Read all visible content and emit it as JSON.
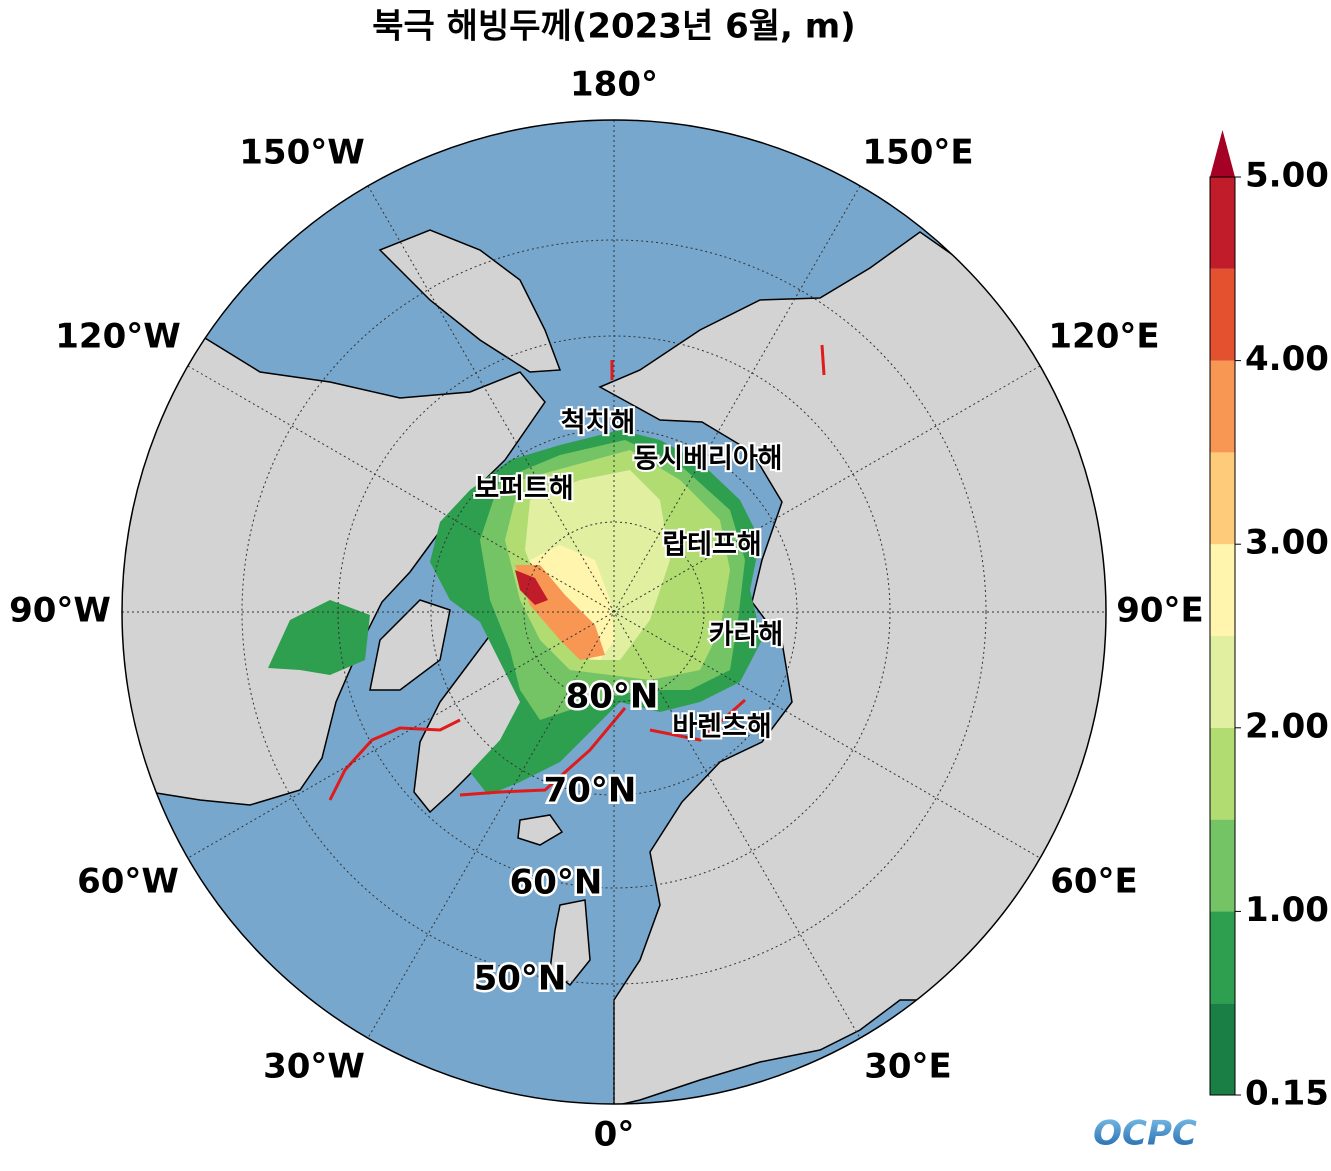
{
  "title": "북극 해빙두께(2023년 6월, m)",
  "longitude_labels": [
    "180°",
    "150°E",
    "120°E",
    "90°E",
    "60°E",
    "30°E",
    "0°",
    "30°W",
    "60°W",
    "90°W",
    "120°W",
    "150°W"
  ],
  "latitude_labels": [
    "80°N",
    "70°N",
    "60°N",
    "50°N"
  ],
  "sea_labels": [
    "척치해",
    "동시베리아해",
    "보퍼트해",
    "랍테프해",
    "카라해",
    "바렌츠해"
  ],
  "colorbar": {
    "levels": [
      0.15,
      0.5,
      1,
      1.5,
      2,
      2.5,
      3,
      3.5,
      4,
      4.5,
      5
    ],
    "colors": [
      "#1a7f44",
      "#2e9e4f",
      "#74c465",
      "#b0dc72",
      "#e0f0a0",
      "#fff5ad",
      "#fdcb7a",
      "#f89753",
      "#e4512f",
      "#c11c2a"
    ],
    "extend_color": "#a50026",
    "ticks": [
      0.15,
      {
        "value": 1,
        "label": "1.00"
      },
      {
        "value": 2,
        "label": "2.00"
      },
      {
        "value": 3,
        "label": "3.00"
      },
      {
        "value": 4,
        "label": "4.00"
      },
      {
        "value": 5,
        "label": "5.00"
      }
    ]
  },
  "logo": "OCPC"
}
